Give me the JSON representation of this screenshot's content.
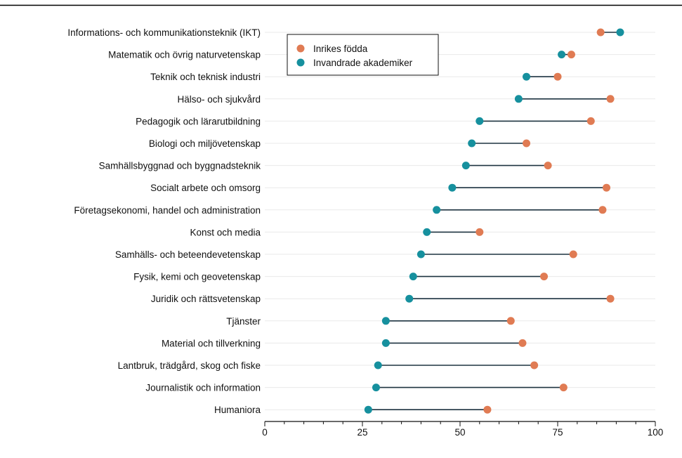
{
  "chart_data": {
    "type": "dumbbell",
    "title": "",
    "xlabel": "",
    "ylabel": "",
    "xlim": [
      0,
      100
    ],
    "xticks": [
      0,
      25,
      50,
      75,
      100
    ],
    "grid": "horizontal",
    "legend_position": "top-left",
    "categories": [
      "Informations- och kommunikationsteknik (IKT)",
      "Matematik och övrig naturvetenskap",
      "Teknik och teknisk industri",
      "Hälso- och sjukvård",
      "Pedagogik och lärarutbildning",
      "Biologi och miljövetenskap",
      "Samhällsbyggnad och byggnadsteknik",
      "Socialt arbete och omsorg",
      "Företagsekonomi, handel och administration",
      "Konst och media",
      "Samhälls- och beteendevetenskap",
      "Fysik, kemi och geovetenskap",
      "Juridik och rättsvetenskap",
      "Tjänster",
      "Material och tillverkning",
      "Lantbruk, trädgård, skog och fiske",
      "Journalistik och information",
      "Humaniora"
    ],
    "series": [
      {
        "name": "Inrikes födda",
        "color": "#e07b53",
        "values": [
          86,
          78.5,
          75,
          88.5,
          83.5,
          67,
          72.5,
          87.5,
          86.5,
          55,
          79,
          71.5,
          88.5,
          63,
          66,
          69,
          76.5,
          57
        ]
      },
      {
        "name": "Invandrade akademiker",
        "color": "#16909e",
        "values": [
          91,
          76,
          67,
          65,
          55,
          53,
          51.5,
          48,
          44,
          41.5,
          40,
          38,
          37,
          31,
          31,
          29,
          28.5,
          26.5
        ]
      }
    ]
  }
}
